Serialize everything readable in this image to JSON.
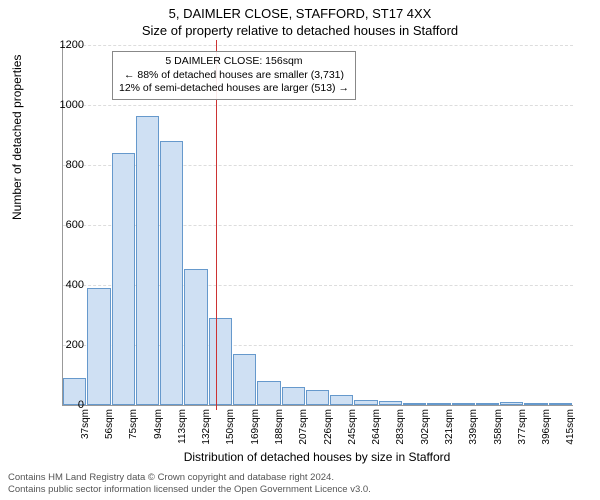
{
  "title_main": "5, DAIMLER CLOSE, STAFFORD, ST17 4XX",
  "title_sub": "Size of property relative to detached houses in Stafford",
  "chart": {
    "type": "histogram",
    "ylabel": "Number of detached properties",
    "xlabel": "Distribution of detached houses by size in Stafford",
    "ylim": [
      0,
      1200
    ],
    "ytick_step": 200,
    "yticks": [
      0,
      200,
      400,
      600,
      800,
      1000,
      1200
    ],
    "xtick_labels": [
      "37sqm",
      "56sqm",
      "75sqm",
      "94sqm",
      "113sqm",
      "132sqm",
      "150sqm",
      "169sqm",
      "188sqm",
      "207sqm",
      "226sqm",
      "245sqm",
      "264sqm",
      "283sqm",
      "302sqm",
      "321sqm",
      "339sqm",
      "358sqm",
      "377sqm",
      "396sqm",
      "415sqm"
    ],
    "bar_values": [
      90,
      390,
      840,
      965,
      880,
      455,
      290,
      170,
      80,
      60,
      50,
      32,
      18,
      12,
      8,
      6,
      5,
      4,
      10,
      4,
      3
    ],
    "bar_fill": "#cfe0f3",
    "bar_border": "#6699cc",
    "grid_color": "#dddddd",
    "axis_color": "#999999",
    "marker_line": {
      "color": "#cc3333",
      "x_index_after": 6
    },
    "label_fontsize": 12,
    "tick_fontsize": 11
  },
  "annotation": {
    "line1": "5 DAIMLER CLOSE: 156sqm",
    "line2": "← 88% of detached houses are smaller (3,731)",
    "line3": "12% of semi-detached houses are larger (513) →"
  },
  "footer": {
    "line1": "Contains HM Land Registry data © Crown copyright and database right 2024.",
    "line2": "Contains public sector information licensed under the Open Government Licence v3.0."
  }
}
